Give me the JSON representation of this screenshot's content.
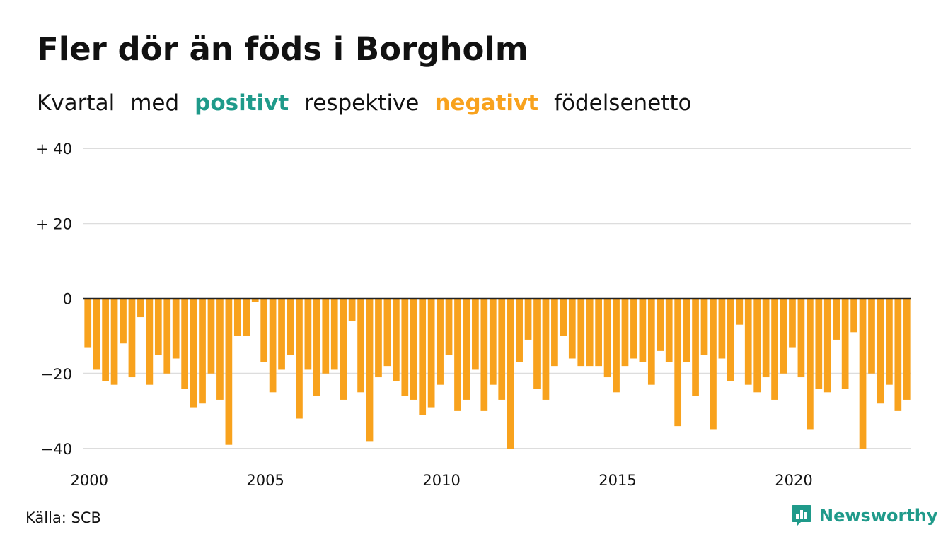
{
  "title": "Fler dör än föds i Borgholm",
  "subtitle": {
    "w1": "Kvartal",
    "w2": "med",
    "positive": "positivt",
    "w3": "respektive",
    "negative": "negativt",
    "w4": "födelsenetto"
  },
  "source": "Källa: SCB",
  "brand": "Newsworthy",
  "colors": {
    "positive": "#1f9a8a",
    "negative": "#f8a21d",
    "grid": "#dddddd",
    "zero": "#222222",
    "text": "#111111"
  },
  "chart_data": {
    "type": "bar",
    "title": "Fler dör än föds i Borgholm",
    "xlabel": "",
    "ylabel": "",
    "ylim": [
      -40,
      40
    ],
    "yticks": [
      {
        "value": 40,
        "label": "+ 40"
      },
      {
        "value": 20,
        "label": "+ 20"
      },
      {
        "value": 0,
        "label": "0"
      },
      {
        "value": -20,
        "label": "−20"
      },
      {
        "value": -40,
        "label": "−40"
      }
    ],
    "xticks": [
      {
        "value": 2000,
        "label": "2000"
      },
      {
        "value": 2005,
        "label": "2005"
      },
      {
        "value": 2010,
        "label": "2010"
      },
      {
        "value": 2015,
        "label": "2015"
      },
      {
        "value": 2020,
        "label": "2020"
      }
    ],
    "grid": true,
    "start_year": 2000,
    "periods_per_year": 4,
    "values": [
      -13,
      -19,
      -22,
      -23,
      -12,
      -21,
      -5,
      -23,
      -15,
      -20,
      -16,
      -24,
      -29,
      -28,
      -20,
      -27,
      -39,
      -10,
      -10,
      -1,
      -17,
      -25,
      -19,
      -15,
      -32,
      -19,
      -26,
      -20,
      -19,
      -27,
      -6,
      -25,
      -38,
      -21,
      -18,
      -22,
      -26,
      -27,
      -31,
      -29,
      -23,
      -15,
      -30,
      -27,
      -19,
      -30,
      -23,
      -27,
      -40,
      -17,
      -11,
      -24,
      -27,
      -18,
      -10,
      -16,
      -18,
      -18,
      -18,
      -21,
      -25,
      -18,
      -16,
      -17,
      -23,
      -14,
      -17,
      -34,
      -17,
      -26,
      -15,
      -35,
      -16,
      -22,
      -7,
      -23,
      -25,
      -21,
      -27,
      -20,
      -13,
      -21,
      -35,
      -24,
      -25,
      -11,
      -24,
      -9,
      -40,
      -20,
      -28,
      -23,
      -30,
      -27
    ]
  }
}
